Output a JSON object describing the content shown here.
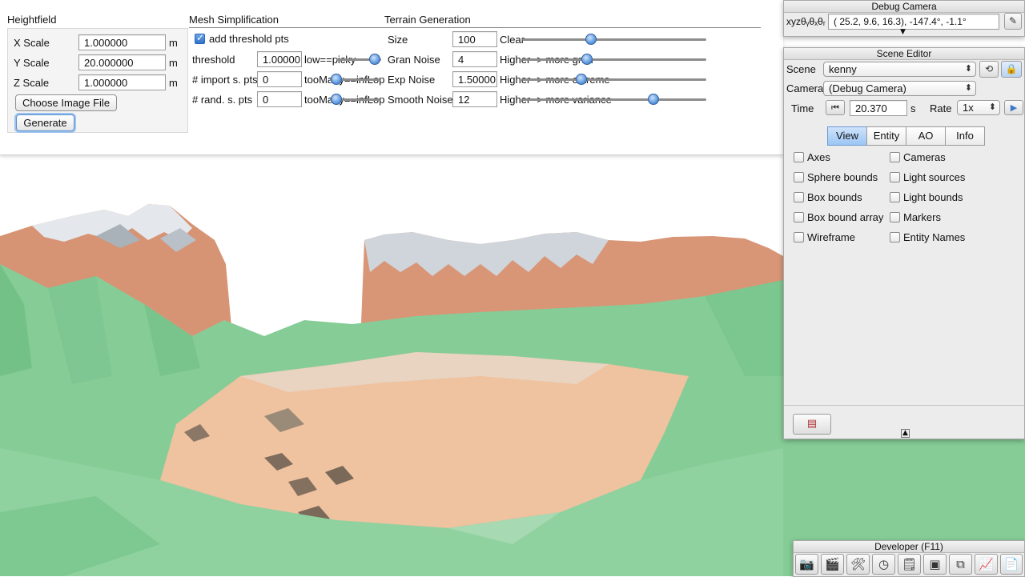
{
  "heightfield": {
    "title": "Heightfield",
    "x_scale_label": "X Scale",
    "x_scale_value": "1.000000",
    "y_scale_label": "Y Scale",
    "y_scale_value": "20.000000",
    "z_scale_label": "Z Scale",
    "z_scale_value": "1.000000",
    "unit": "m",
    "choose_button": "Choose Image File",
    "generate_button": "Generate"
  },
  "mesh": {
    "title": "Mesh Simplification",
    "add_threshold_label": "add threshold pts",
    "add_threshold_checked": true,
    "threshold_label": "threshold",
    "threshold_value": "1.00000",
    "threshold_hint": "low==picky",
    "import_label": "# import s. pts",
    "import_value": "0",
    "import_hint": "tooMany==infLop",
    "rand_label": "# rand. s. pts",
    "rand_value": "0",
    "rand_hint": "tooMany==infLop"
  },
  "terrain": {
    "title": "Terrain Generation",
    "size_label": "Size",
    "size_value": "100",
    "size_hint": "Clear",
    "gran_label": "Gran Noise",
    "gran_value": "4",
    "gran_hint": "Higher -> more gran",
    "exp_label": "Exp Noise",
    "exp_value": "1.50000",
    "exp_hint": "Higher -> more extreme",
    "smooth_label": "Smooth Noise",
    "smooth_value": "12",
    "smooth_hint": "Higher -> more variance"
  },
  "debug_camera": {
    "title": "Debug Camera",
    "xyz_label": "xyzθᵧθₓθᵣ",
    "readout": "( 25.2,   9.6,  16.3), -147.4°,  -1.1°"
  },
  "scene_editor": {
    "title": "Scene Editor",
    "scene_label": "Scene",
    "scene_value": "kenny",
    "camera_label": "Camera",
    "camera_value": "(Debug Camera)",
    "time_label": "Time",
    "time_value": "20.370",
    "time_unit": "s",
    "rate_label": "Rate",
    "rate_value": "1x",
    "tabs": [
      "View",
      "Entity",
      "AO",
      "Info"
    ],
    "active_tab": "View",
    "options_left": [
      "Axes",
      "Sphere bounds",
      "Box bounds",
      "Box bound array",
      "Wireframe"
    ],
    "options_right": [
      "Cameras",
      "Light sources",
      "Light bounds",
      "Markers",
      "Entity Names"
    ]
  },
  "developer": {
    "title": "Developer (F11)",
    "tools": [
      "camera-icon",
      "clapper-icon",
      "tools-icon",
      "clock-icon",
      "note-icon",
      "terminal-icon",
      "windows-icon",
      "graph-icon",
      "document-icon"
    ]
  },
  "colors": {
    "terrain_green": "#7fc890",
    "terrain_sand": "#efbf9b",
    "rock": "#d4896a",
    "snow": "#e6ebef",
    "accent": "#5f9be0"
  }
}
